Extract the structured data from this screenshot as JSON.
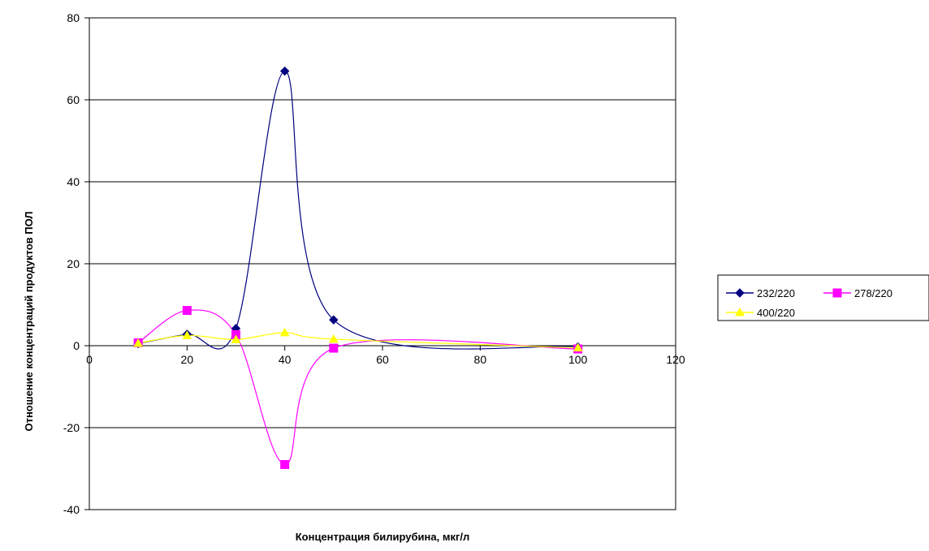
{
  "chart_data": {
    "type": "scatter",
    "title": "",
    "xlabel": "Концентрация билирубина, мкг/л",
    "ylabel": "Отношение концентраций продуктов ПОЛ",
    "xlim": [
      0,
      120
    ],
    "ylim": [
      -40,
      80
    ],
    "x_ticks": [
      "0",
      "20",
      "40",
      "60",
      "80",
      "100",
      "120"
    ],
    "y_ticks": [
      "-40",
      "-20",
      "0",
      "20",
      "40",
      "60",
      "80"
    ],
    "grid": "horizontal",
    "legend_position": "right",
    "series": [
      {
        "name": "232/220",
        "color": "#000080",
        "marker": "diamond",
        "x": [
          10,
          20,
          30,
          40,
          50,
          100
        ],
        "y": [
          0.5,
          2.8,
          4.2,
          67,
          6.3,
          -0.3
        ]
      },
      {
        "name": "278/220",
        "color": "#FF00FF",
        "marker": "square",
        "x": [
          10,
          20,
          30,
          40,
          50,
          100
        ],
        "y": [
          0.7,
          8.6,
          2.7,
          -29,
          -0.6,
          -0.8
        ]
      },
      {
        "name": "400/220",
        "color": "#FFFF00",
        "marker": "triangle",
        "x": [
          10,
          20,
          30,
          40,
          50,
          100
        ],
        "y": [
          0.6,
          2.5,
          1.5,
          3.2,
          1.6,
          -0.5
        ]
      }
    ]
  }
}
